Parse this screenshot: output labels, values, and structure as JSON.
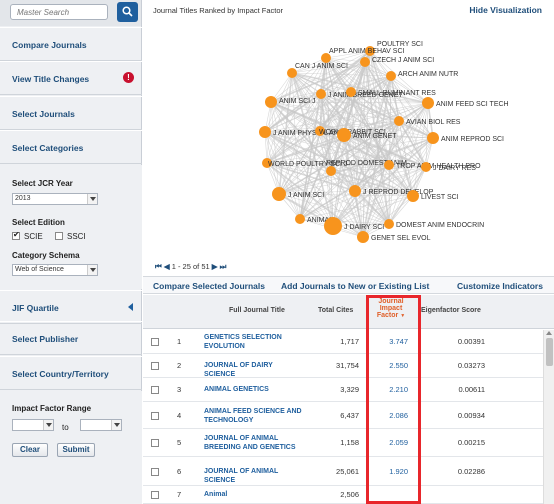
{
  "search": {
    "placeholder": "Master Search"
  },
  "sidebar": {
    "compare_journals": "Compare Journals",
    "view_title_changes": "View Title Changes",
    "select_journals": "Select Journals",
    "select_categories": "Select Categories",
    "jcr_year_label": "Select JCR Year",
    "jcr_year_value": "2013",
    "edition_label": "Select Edition",
    "edition_scie": "SCIE",
    "edition_ssci": "SSCI",
    "category_schema_label": "Category Schema",
    "category_schema_value": "Web of Science",
    "jif_quartile": "JIF Quartile",
    "select_publisher": "Select Publisher",
    "select_country": "Select Country/Territory",
    "impact_range_label": "Impact Factor Range",
    "range_to": "to",
    "clear_label": "Clear",
    "submit_label": "Submit",
    "alert_glyph": "!"
  },
  "viz": {
    "title": "Journal Titles Ranked by Impact Factor",
    "hide_label": "Hide Visualization",
    "node_color": "#f7941d",
    "nodes": [
      {
        "label": "POULTRY SCI"
      },
      {
        "label": "APPL ANIM BEHAV SCI"
      },
      {
        "label": "CZECH J ANIM SCI"
      },
      {
        "label": "CAN J ANIM SCI"
      },
      {
        "label": "ARCH ANIM NUTR"
      },
      {
        "label": "J ANIM BREED GENET"
      },
      {
        "label": "SMALL RUMINANT RES"
      },
      {
        "label": "ANIM SCI J"
      },
      {
        "label": "ANIM FEED SCI TECH"
      },
      {
        "label": "AVIAN BIOL RES"
      },
      {
        "label": "J ANIM PHYSIOL AN N"
      },
      {
        "label": "WORLD RABBIT SCI"
      },
      {
        "label": "ANIM GENET"
      },
      {
        "label": "ANIM REPROD SCI"
      },
      {
        "label": "WORLD POULTRY SCI J"
      },
      {
        "label": "REPROD DOMEST ANIM"
      },
      {
        "label": "TROP ANIM HEALTH PRO"
      },
      {
        "label": "J DAIRY RES"
      },
      {
        "label": "J ANIM SCI"
      },
      {
        "label": "J REPROD DEVELOP"
      },
      {
        "label": "LIVEST SCI"
      },
      {
        "label": "ANIMAL"
      },
      {
        "label": "DOMEST ANIM ENDOCRIN"
      },
      {
        "label": "J DAIRY SCI"
      },
      {
        "label": "GENET SEL EVOL"
      }
    ]
  },
  "pager": {
    "first": "⏮",
    "prev": "◀",
    "range": "1 - 25 of 51",
    "next": "▶",
    "last": "⏭"
  },
  "actions": {
    "compare": "Compare Selected Journals",
    "add": "Add Journals to New or Existing List",
    "customize": "Customize Indicators"
  },
  "table": {
    "headers": {
      "title": "Full Journal Title",
      "cites": "Total Cites",
      "jif": "Journal Impact Factor",
      "jif_sort": "▼",
      "eigen": "Eigenfactor Score"
    },
    "rows": [
      {
        "rank": "1",
        "title": "GENETICS SELECTION EVOLUTION",
        "cites": "1,717",
        "jif": "3.747",
        "eigen": "0.00391"
      },
      {
        "rank": "2",
        "title": "JOURNAL OF DAIRY SCIENCE",
        "cites": "31,754",
        "jif": "2.550",
        "eigen": "0.03273"
      },
      {
        "rank": "3",
        "title": "ANIMAL GENETICS",
        "cites": "3,329",
        "jif": "2.210",
        "eigen": "0.00611"
      },
      {
        "rank": "4",
        "title": "ANIMAL FEED SCIENCE AND TECHNOLOGY",
        "cites": "6,437",
        "jif": "2.086",
        "eigen": "0.00934"
      },
      {
        "rank": "5",
        "title": "JOURNAL OF ANIMAL BREEDING AND GENETICS",
        "cites": "1,158",
        "jif": "2.059",
        "eigen": "0.00215"
      },
      {
        "rank": "6",
        "title": "JOURNAL OF ANIMAL SCIENCE",
        "cites": "25,061",
        "jif": "1.920",
        "eigen": "0.02286"
      },
      {
        "rank": "7",
        "title": "Animal",
        "cites": "2,506",
        "jif": "",
        "eigen": ""
      }
    ]
  }
}
